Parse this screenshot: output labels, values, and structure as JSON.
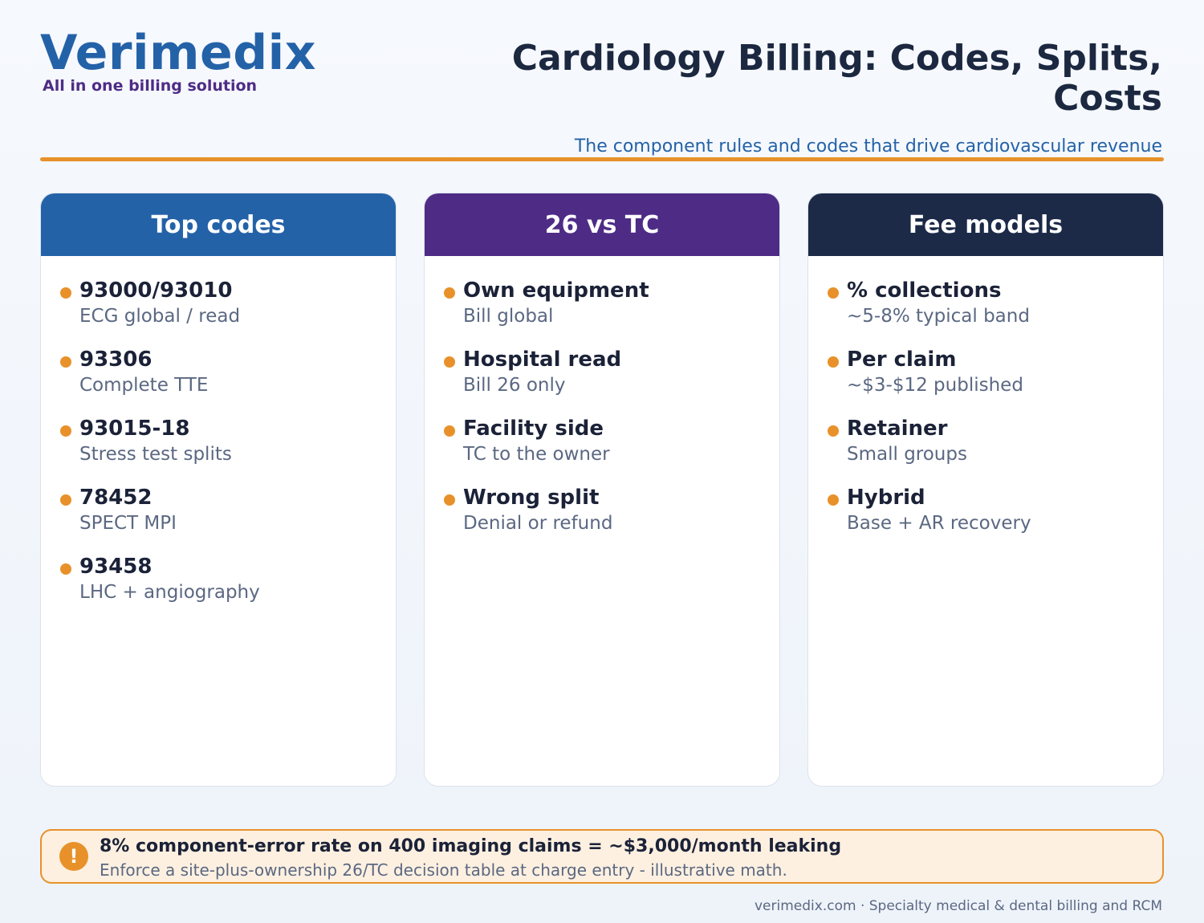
{
  "brand": {
    "name": "Verimedix",
    "tagline": "All in one billing solution"
  },
  "title": "Cardiology Billing: Codes, Splits, Costs",
  "subtitle": "The component rules and codes that drive cardiovascular revenue",
  "colors": {
    "brand_blue": "#2462a8",
    "brand_purple": "#4e2c86",
    "navy": "#1c2a48",
    "accent_orange": "#e8912a",
    "callout_bg": "#fdf0e0"
  },
  "cards": [
    {
      "title": "Top codes",
      "header_color": "#2462a8",
      "items": [
        {
          "title": "93000/93010",
          "desc": "ECG global / read"
        },
        {
          "title": "93306",
          "desc": "Complete TTE"
        },
        {
          "title": "93015-18",
          "desc": "Stress test splits"
        },
        {
          "title": "78452",
          "desc": "SPECT MPI"
        },
        {
          "title": "93458",
          "desc": "LHC + angiography"
        }
      ]
    },
    {
      "title": "26 vs TC",
      "header_color": "#4e2c86",
      "items": [
        {
          "title": "Own equipment",
          "desc": "Bill global"
        },
        {
          "title": "Hospital read",
          "desc": "Bill 26 only"
        },
        {
          "title": "Facility side",
          "desc": "TC to the owner"
        },
        {
          "title": "Wrong split",
          "desc": "Denial or refund"
        }
      ]
    },
    {
      "title": "Fee models",
      "header_color": "#1c2a48",
      "items": [
        {
          "title": "% collections",
          "desc": "~5-8% typical band"
        },
        {
          "title": "Per claim",
          "desc": "~$3-$12 published"
        },
        {
          "title": "Retainer",
          "desc": "Small groups"
        },
        {
          "title": "Hybrid",
          "desc": "Base + AR recovery"
        }
      ]
    }
  ],
  "callout": {
    "icon": "exclamation-icon",
    "icon_glyph": "!",
    "title": "8% component-error rate on 400 imaging claims = ~$3,000/month leaking",
    "subtitle": "Enforce a site-plus-ownership 26/TC decision table at charge entry - illustrative math."
  },
  "footer": "verimedix.com · Specialty medical & dental billing and RCM"
}
